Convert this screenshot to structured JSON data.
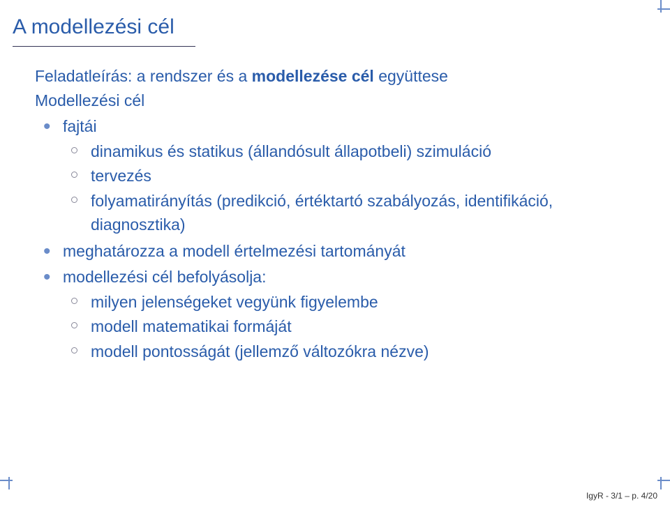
{
  "colors": {
    "title": "#2a5caa",
    "body": "#2a5caa",
    "bullet_l1": "#6a8cc9",
    "bullet_l2_border": "#888899",
    "underline": "#333355",
    "footer": "#333333",
    "tick": "#6a8cc9",
    "background": "#ffffff"
  },
  "typography": {
    "title_fontsize": 30,
    "body_fontsize": 23,
    "footer_fontsize": 12,
    "font_family": "Helvetica"
  },
  "title": "A modellezési cél",
  "body": {
    "intro_prefix": "Feladatleírás: a rendszer és a ",
    "intro_bold": "modellezése cél",
    "intro_suffix": " együttese",
    "subheading": "Modellezési cél",
    "items": [
      {
        "label": "fajtái",
        "sub": [
          "dinamikus és statikus (állandósult állapotbeli) szimuláció",
          "tervezés",
          "folyamatirányítás (predikció, értéktartó szabályozás, identifikáció, diagnosztika)"
        ]
      },
      {
        "label": "meghatározza a modell értelmezési tartományát",
        "sub": []
      },
      {
        "label": "modellezési cél befolyásolja:",
        "sub": [
          "milyen jelenségeket vegyünk figyelembe",
          "modell matematikai formáját",
          "modell pontosságát (jellemző változókra nézve)"
        ]
      }
    ]
  },
  "footer": "IgyR - 3/1 – p. 4/20"
}
